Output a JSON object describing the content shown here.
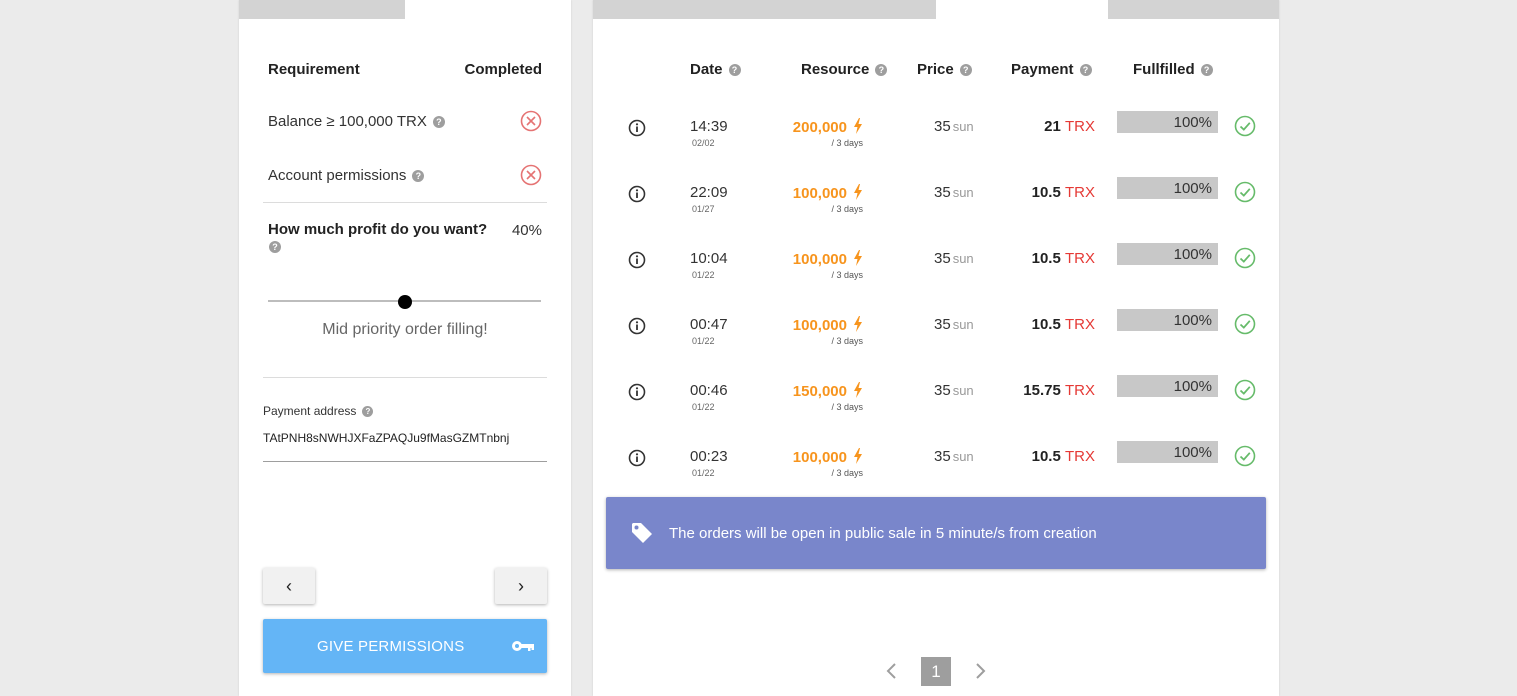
{
  "requirements": {
    "header_requirement": "Requirement",
    "header_completed": "Completed",
    "items": [
      {
        "label": "Balance ≥ 100,000 TRX",
        "status": "not-met"
      },
      {
        "label": "Account permissions",
        "status": "not-met"
      }
    ]
  },
  "profit": {
    "question": "How much profit do you want?",
    "value": "40%",
    "slider_fraction": 0.5,
    "caption": "Mid priority order filling!"
  },
  "payment_address": {
    "label": "Payment address",
    "value": "TAtPNH8sNWHJXFaZPAQJu9fMasGZMTnbnj"
  },
  "buttons": {
    "prev": "‹",
    "next": "›",
    "give_permissions": "GIVE PERMISSIONS"
  },
  "orders": {
    "columns": {
      "date": "Date",
      "resource": "Resource",
      "price": "Price",
      "payment": "Payment",
      "fulfilled": "Fullfilled"
    },
    "rows": [
      {
        "time": "14:39",
        "date": "02/02",
        "resource": "200,000",
        "period": "/ 3 days",
        "price": "35",
        "price_unit": "sun",
        "payment": "21",
        "currency": "TRX",
        "fulfilled": "100%"
      },
      {
        "time": "22:09",
        "date": "01/27",
        "resource": "100,000",
        "period": "/ 3 days",
        "price": "35",
        "price_unit": "sun",
        "payment": "10.5",
        "currency": "TRX",
        "fulfilled": "100%"
      },
      {
        "time": "10:04",
        "date": "01/22",
        "resource": "100,000",
        "period": "/ 3 days",
        "price": "35",
        "price_unit": "sun",
        "payment": "10.5",
        "currency": "TRX",
        "fulfilled": "100%"
      },
      {
        "time": "00:47",
        "date": "01/22",
        "resource": "100,000",
        "period": "/ 3 days",
        "price": "35",
        "price_unit": "sun",
        "payment": "10.5",
        "currency": "TRX",
        "fulfilled": "100%"
      },
      {
        "time": "00:46",
        "date": "01/22",
        "resource": "150,000",
        "period": "/ 3 days",
        "price": "35",
        "price_unit": "sun",
        "payment": "15.75",
        "currency": "TRX",
        "fulfilled": "100%"
      },
      {
        "time": "00:23",
        "date": "01/22",
        "resource": "100,000",
        "period": "/ 3 days",
        "price": "35",
        "price_unit": "sun",
        "payment": "10.5",
        "currency": "TRX",
        "fulfilled": "100%"
      }
    ]
  },
  "banner": {
    "text": "The orders will be open in public sale in 5 minute/s from creation",
    "icon": "tag-icon"
  },
  "pagination": {
    "current_page": "1"
  },
  "colors": {
    "accent_blue": "#64b5f6",
    "banner_purple": "#7986cb",
    "resource_orange": "#f7941d",
    "currency_red": "#e53935",
    "error_red": "#e57373",
    "success_green": "#66bb6a"
  }
}
